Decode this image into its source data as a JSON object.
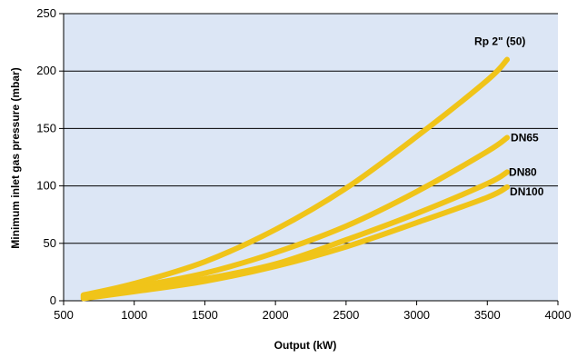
{
  "chart_data": {
    "type": "line",
    "title": "",
    "xlabel": "Output (kW)",
    "ylabel": "Minimum inlet gas pressure (mbar)",
    "xlim": [
      500,
      4000
    ],
    "ylim": [
      0,
      250
    ],
    "xticks": [
      500,
      1000,
      1500,
      2000,
      2500,
      3000,
      3500,
      4000
    ],
    "yticks": [
      0,
      50,
      100,
      150,
      200,
      250
    ],
    "grid": true,
    "legend": "inline labels at line ends",
    "colors": {
      "plot_background": "#dce6f5",
      "line": "#f0c419",
      "grid": "#000000"
    },
    "series": [
      {
        "name": "Rp 2\" (50)",
        "x": [
          640,
          1000,
          1500,
          2000,
          2500,
          3000,
          3500,
          3640
        ],
        "y": [
          5,
          15,
          34,
          62,
          98,
          143,
          192,
          210
        ]
      },
      {
        "name": "DN65",
        "x": [
          640,
          1000,
          1500,
          2000,
          2500,
          3000,
          3500,
          3640
        ],
        "y": [
          4,
          12,
          24,
          42,
          65,
          95,
          130,
          142
        ]
      },
      {
        "name": "DN80",
        "x": [
          640,
          1000,
          1500,
          2000,
          2500,
          3000,
          3500,
          3640
        ],
        "y": [
          3,
          9,
          19,
          32,
          53,
          76,
          102,
          112
        ]
      },
      {
        "name": "DN100",
        "x": [
          640,
          1000,
          1500,
          2000,
          2500,
          3000,
          3500,
          3640
        ],
        "y": [
          2,
          8,
          17,
          30,
          47,
          68,
          90,
          99
        ]
      }
    ]
  }
}
